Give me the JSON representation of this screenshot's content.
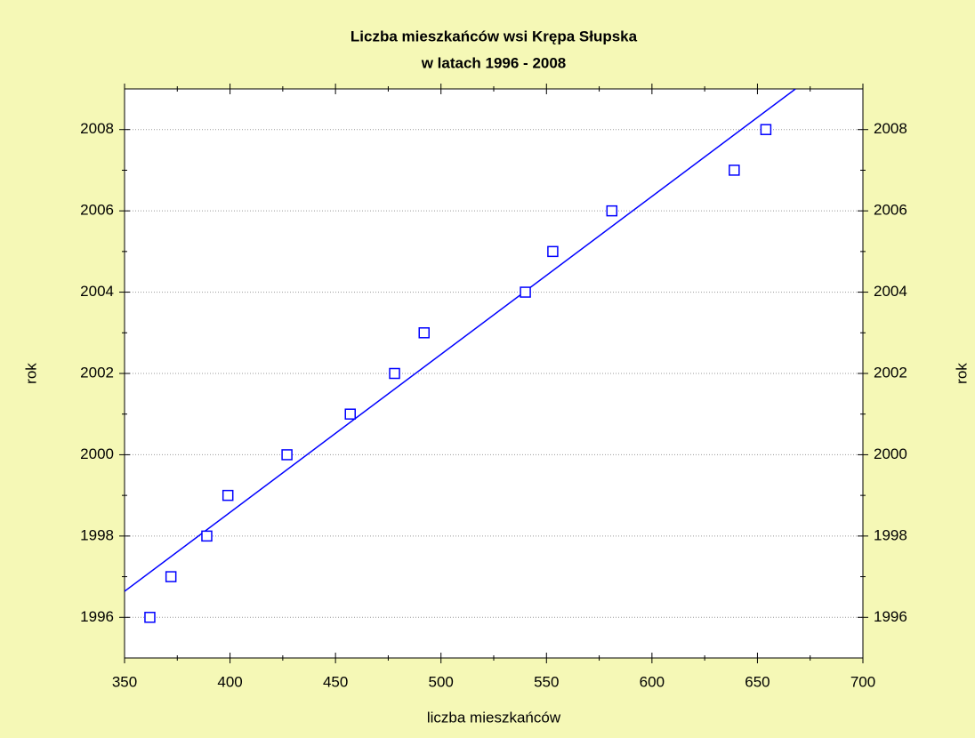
{
  "chart_data": {
    "type": "scatter",
    "title": [
      "Liczba mieszkańców wsi Krępa Słupska",
      "w latach 1996 - 2008"
    ],
    "x_label": "liczba mieszkańców",
    "y_label": "rok",
    "x": [
      362,
      372,
      389,
      399,
      427,
      457,
      478,
      492,
      540,
      553,
      581,
      639,
      654
    ],
    "values": [
      1996,
      1997,
      1998,
      1999,
      2000,
      2001,
      2002,
      2003,
      2004,
      2005,
      2006,
      2007,
      2008
    ],
    "color": "#0000ff",
    "trend_line": true,
    "xlim": [
      350,
      700
    ],
    "xticks": [
      350,
      400,
      450,
      500,
      550,
      600,
      650,
      700
    ],
    "ylim": [
      1995,
      2009
    ],
    "yticks": [
      1996,
      1998,
      2000,
      2002,
      2004,
      2006,
      2008
    ],
    "grid": true
  }
}
